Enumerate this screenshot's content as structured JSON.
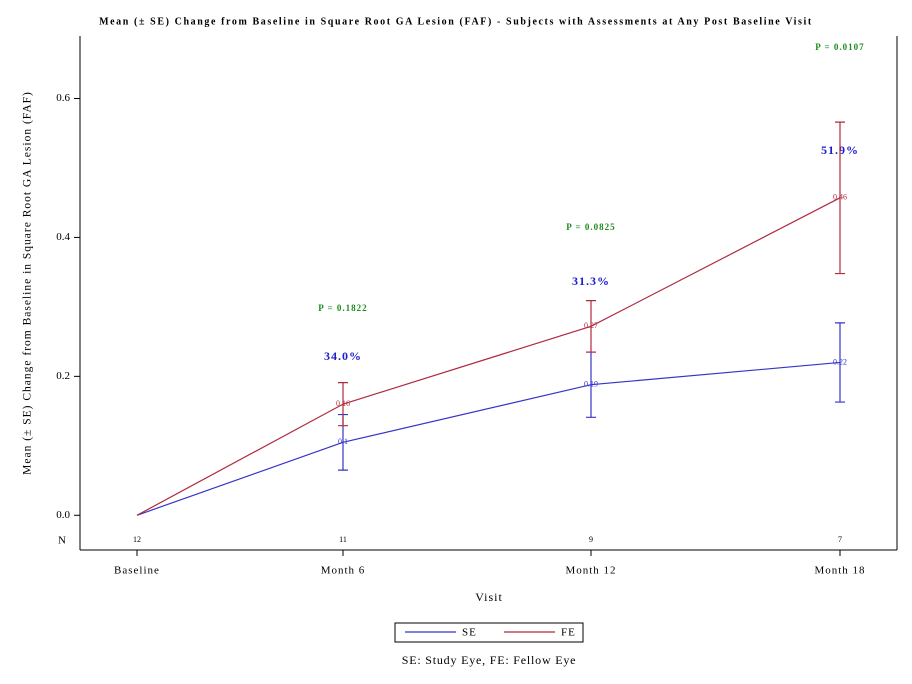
{
  "chart_data": {
    "type": "line",
    "title": "Mean (± SE) Change from Baseline in Square Root GA Lesion (FAF) - Subjects with Assessments at Any Post Baseline Visit",
    "x_label": "Visit",
    "y_label": "Mean (± SE) Change from Baseline in Square Root GA Lesion (FAF)",
    "footnote": "SE: Study Eye, FE: Fellow Eye",
    "categories": [
      "Baseline",
      "Month 6",
      "Month 12",
      "Month 18"
    ],
    "ylim": [
      -0.05,
      0.69
    ],
    "yticks": [
      {
        "value": 0,
        "label": "0.0"
      },
      0.2,
      0.4,
      0.6
    ],
    "n_label": "N",
    "n_counts": [
      12,
      11,
      9,
      7
    ],
    "percent_labels": [
      null,
      "34.0%",
      "31.3%",
      "51.9%"
    ],
    "p_labels": [
      null,
      "P = 0.1822",
      "P = 0.0825",
      "P = 0.0107"
    ],
    "series": [
      {
        "name": "SE",
        "color": "#3535c8",
        "values": [
          0,
          0.105,
          0.188,
          0.22
        ],
        "errors": [
          null,
          0.04,
          0.047,
          0.057
        ],
        "value_labels": [
          null,
          "0.1",
          "0.19",
          "0.22"
        ]
      },
      {
        "name": "FE",
        "color": "#b02a3e",
        "values": [
          0,
          0.16,
          0.272,
          0.457
        ],
        "errors": [
          null,
          0.031,
          0.037,
          0.109
        ],
        "value_labels": [
          null,
          "0.16",
          "0.27",
          "0.46"
        ]
      }
    ]
  }
}
